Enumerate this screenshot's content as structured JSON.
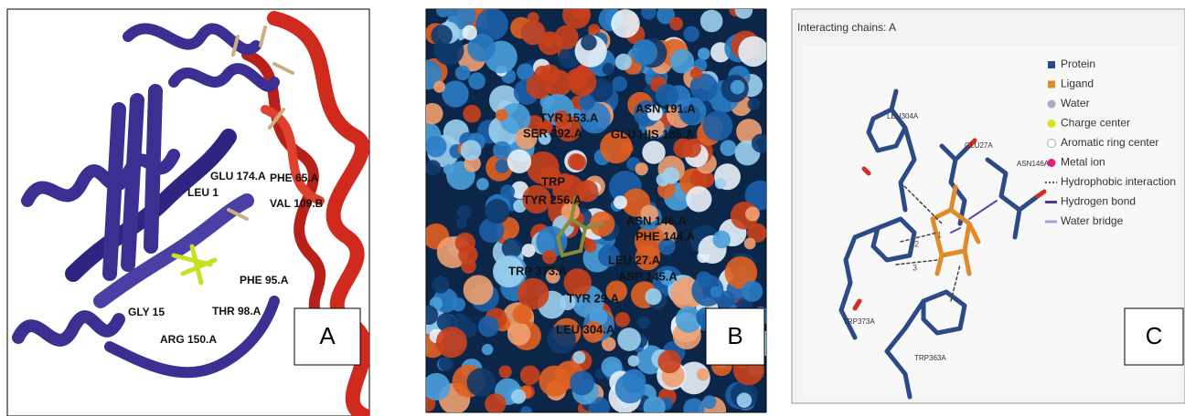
{
  "panels": [
    {
      "label": "A",
      "residue_labels": [
        "GLU 174.A",
        "PHE 65.A",
        "VAL 109.B",
        "LEU 1",
        "PHE 95.A",
        "GLY 15",
        "ARG 150.A",
        "THR 98.A"
      ]
    },
    {
      "label": "B",
      "residue_labels": [
        "TYR 153.A",
        "ASN 191.A",
        "SER 292.A",
        "GLU HIS 185.A",
        "TRP",
        "TYR 256.A",
        "ASN 146.A",
        "PHE 144.A",
        "TRP 373.A",
        "LEU 27.A",
        "ASP 145.A",
        "TYR 29.A",
        "LEU 304.A"
      ]
    },
    {
      "label": "C",
      "title": "Interacting chains: A",
      "legend": [
        "Protein",
        "Ligand",
        "Water",
        "Charge center",
        "Aromatic ring center",
        "Metal ion",
        "Hydrophobic interaction",
        "Hydrogen bond",
        "Water bridge"
      ],
      "residue_labels": [
        "LEU304A",
        "GLU27A",
        "ASN146A",
        "TRP373A",
        "TRP363A"
      ],
      "bond_labels": [
        "1",
        "2",
        "3"
      ]
    }
  ]
}
